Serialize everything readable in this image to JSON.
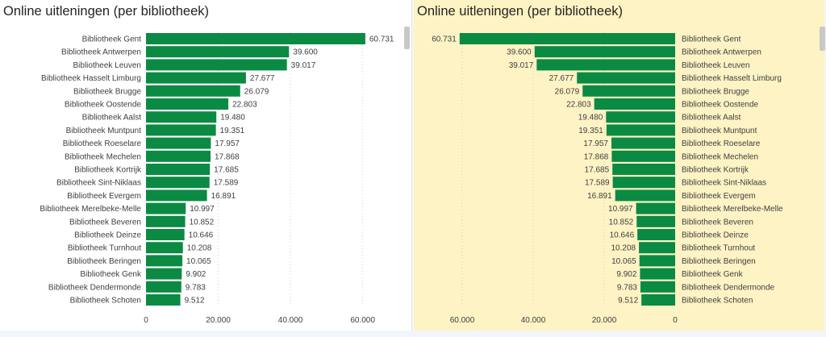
{
  "colors": {
    "bar": "#0b8a43",
    "left_background": "#ffffff",
    "right_background": "#fdf3c4"
  },
  "chart_data": [
    {
      "type": "bar",
      "orientation": "horizontal",
      "title": "Online uitleningen (per bibliotheek)",
      "categories": [
        "Bibliotheek Gent",
        "Bibliotheek Antwerpen",
        "Bibliotheek Leuven",
        "Bibliotheek Hasselt Limburg",
        "Bibliotheek Brugge",
        "Bibliotheek Oostende",
        "Bibliotheek Aalst",
        "Bibliotheek Muntpunt",
        "Bibliotheek Roeselare",
        "Bibliotheek Mechelen",
        "Bibliotheek Kortrijk",
        "Bibliotheek Sint-Niklaas",
        "Bibliotheek Evergem",
        "Bibliotheek Merelbeke-Melle",
        "Bibliotheek Beveren",
        "Bibliotheek Deinze",
        "Bibliotheek Turnhout",
        "Bibliotheek Beringen",
        "Bibliotheek Genk",
        "Bibliotheek Dendermonde",
        "Bibliotheek Schoten"
      ],
      "values": [
        60731,
        39600,
        39017,
        27677,
        26079,
        22803,
        19480,
        19351,
        17957,
        17868,
        17685,
        17589,
        16891,
        10997,
        10852,
        10646,
        10208,
        10065,
        9902,
        9783,
        9512
      ],
      "value_labels": [
        "60.731",
        "39.600",
        "39.017",
        "27.677",
        "26.079",
        "22.803",
        "19.480",
        "19.351",
        "17.957",
        "17.868",
        "17.685",
        "17.589",
        "16.891",
        "10.997",
        "10.852",
        "10.646",
        "10.208",
        "10.065",
        "9.902",
        "9.783",
        "9.512"
      ],
      "xlim": [
        0,
        65000
      ],
      "ticks": [
        0,
        20000,
        40000,
        60000
      ],
      "tick_labels": [
        "0",
        "20.000",
        "40.000",
        "60.000"
      ],
      "grid": true,
      "axis_direction": "normal"
    },
    {
      "type": "bar",
      "orientation": "horizontal",
      "title": "Online uitleningen (per bibliotheek)",
      "categories": [
        "Bibliotheek Gent",
        "Bibliotheek Antwerpen",
        "Bibliotheek Leuven",
        "Bibliotheek Hasselt Limburg",
        "Bibliotheek Brugge",
        "Bibliotheek Oostende",
        "Bibliotheek Aalst",
        "Bibliotheek Muntpunt",
        "Bibliotheek Roeselare",
        "Bibliotheek Mechelen",
        "Bibliotheek Kortrijk",
        "Bibliotheek Sint-Niklaas",
        "Bibliotheek Evergem",
        "Bibliotheek Merelbeke-Melle",
        "Bibliotheek Beveren",
        "Bibliotheek Deinze",
        "Bibliotheek Turnhout",
        "Bibliotheek Beringen",
        "Bibliotheek Genk",
        "Bibliotheek Dendermonde",
        "Bibliotheek Schoten"
      ],
      "values": [
        60731,
        39600,
        39017,
        27677,
        26079,
        22803,
        19480,
        19351,
        17957,
        17868,
        17685,
        17589,
        16891,
        10997,
        10852,
        10646,
        10208,
        10065,
        9902,
        9783,
        9512
      ],
      "value_labels": [
        "60.731",
        "39.600",
        "39.017",
        "27.677",
        "26.079",
        "22.803",
        "19.480",
        "19.351",
        "17.957",
        "17.868",
        "17.685",
        "17.589",
        "16.891",
        "10.997",
        "10.852",
        "10.646",
        "10.208",
        "10.065",
        "9.902",
        "9.783",
        "9.512"
      ],
      "xlim": [
        0,
        65000
      ],
      "ticks": [
        0,
        20000,
        40000,
        60000
      ],
      "tick_labels": [
        "0",
        "20.000",
        "40.000",
        "60.000"
      ],
      "grid": true,
      "axis_direction": "reversed"
    }
  ]
}
